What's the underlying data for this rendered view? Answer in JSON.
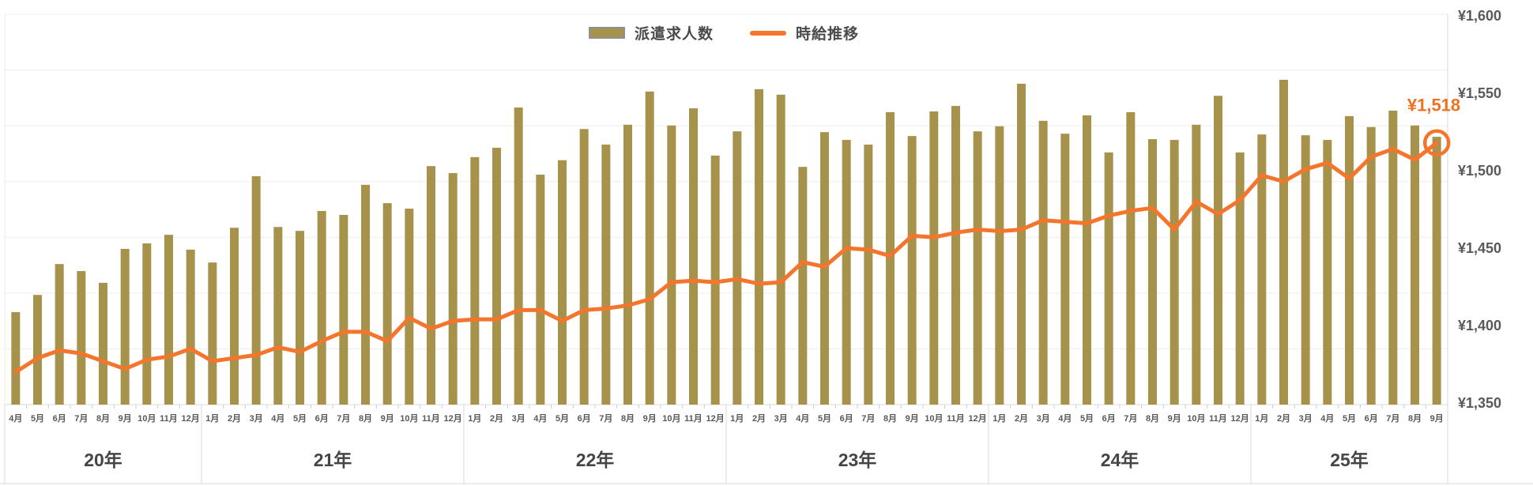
{
  "legend": {
    "items": [
      {
        "label": "派遣求人数",
        "type": "bar"
      },
      {
        "label": "時給推移",
        "type": "line"
      }
    ]
  },
  "annotation": {
    "last_point_label": "¥1,518"
  },
  "colors": {
    "bar": "#a6924a",
    "line": "#f5752c",
    "annotation": "#f0711f",
    "grid": "#ededed",
    "axis_border": "#d8d8d8",
    "tick": "#cccccc",
    "month_label": "#595959",
    "year_label": "#454545",
    "y_label": "#595959"
  },
  "chart_data": {
    "type": "bar+line combo",
    "title": "",
    "categories": [
      "4月",
      "5月",
      "6月",
      "7月",
      "8月",
      "9月",
      "10月",
      "11月",
      "12月",
      "1月",
      "2月",
      "3月",
      "4月",
      "5月",
      "6月",
      "7月",
      "8月",
      "9月",
      "10月",
      "11月",
      "12月",
      "1月",
      "2月",
      "3月",
      "4月",
      "5月",
      "6月",
      "7月",
      "8月",
      "9月",
      "10月",
      "11月",
      "12月",
      "1月",
      "2月",
      "3月",
      "4月",
      "5月",
      "6月",
      "7月",
      "8月",
      "9月",
      "10月",
      "11月",
      "12月",
      "1月",
      "2月",
      "3月",
      "4月",
      "5月",
      "6月",
      "7月",
      "8月",
      "9月",
      "10月",
      "11月",
      "12月",
      "1月",
      "2月",
      "3月",
      "4月",
      "5月",
      "6月",
      "7月",
      "8月",
      "9月"
    ],
    "year_groups": [
      {
        "label": "20年",
        "months": 9
      },
      {
        "label": "21年",
        "months": 12
      },
      {
        "label": "22年",
        "months": 12
      },
      {
        "label": "23年",
        "months": 12
      },
      {
        "label": "24年",
        "months": 12
      },
      {
        "label": "25年",
        "months": 9
      }
    ],
    "series": [
      {
        "name": "派遣求人数",
        "type": "bar",
        "axis": "hidden-left",
        "unit": "relative height % of plot",
        "values": [
          23.7,
          28.1,
          36.0,
          34.2,
          31.2,
          39.9,
          41.3,
          43.5,
          39.7,
          36.4,
          45.3,
          58.5,
          45.5,
          44.5,
          49.6,
          48.6,
          56.3,
          51.6,
          50.2,
          61.1,
          59.3,
          63.4,
          65.8,
          76.1,
          58.9,
          62.6,
          70.6,
          66.6,
          71.7,
          80.2,
          71.5,
          75.9,
          63.8,
          70.0,
          80.8,
          79.4,
          60.9,
          69.8,
          67.8,
          66.6,
          74.9,
          68.8,
          75.1,
          76.5,
          70.0,
          71.3,
          82.2,
          72.7,
          69.4,
          74.1,
          64.6,
          74.9,
          68.0,
          67.8,
          71.7,
          79.1,
          64.6,
          69.2,
          83.2,
          69.0,
          67.8,
          73.9,
          71.1,
          75.3,
          71.5,
          68.6
        ]
      },
      {
        "name": "時給推移",
        "type": "line",
        "axis": "right",
        "unit": "JPY",
        "values": [
          1370,
          1379,
          1384,
          1382,
          1377,
          1372,
          1378,
          1380,
          1385,
          1377,
          1379,
          1381,
          1386,
          1383,
          1390,
          1396,
          1396,
          1390,
          1405,
          1398,
          1403,
          1404,
          1404,
          1410,
          1410,
          1403,
          1410,
          1411,
          1413,
          1417,
          1428,
          1429,
          1428,
          1430,
          1427,
          1428,
          1441,
          1438,
          1450,
          1449,
          1445,
          1458,
          1457,
          1460,
          1462,
          1461,
          1462,
          1468,
          1467,
          1466,
          1471,
          1474,
          1476,
          1462,
          1480,
          1472,
          1481,
          1497,
          1493,
          1501,
          1505,
          1495,
          1509,
          1514,
          1507,
          1518
        ]
      }
    ],
    "right_axis": {
      "min": 1350,
      "max": 1600,
      "step": 50,
      "tick_labels": [
        "¥1,600",
        "¥1,550",
        "¥1,500",
        "¥1,450",
        "¥1,400",
        "¥1,350"
      ]
    },
    "hidden_left_axis_gridline_count": 8,
    "grid": "horizontal light-gray lines",
    "legend_position": "top-center",
    "last_point": {
      "category": "9月",
      "year": "25年",
      "value": 1518,
      "label": "¥1,518",
      "marker": "orange ring"
    }
  }
}
